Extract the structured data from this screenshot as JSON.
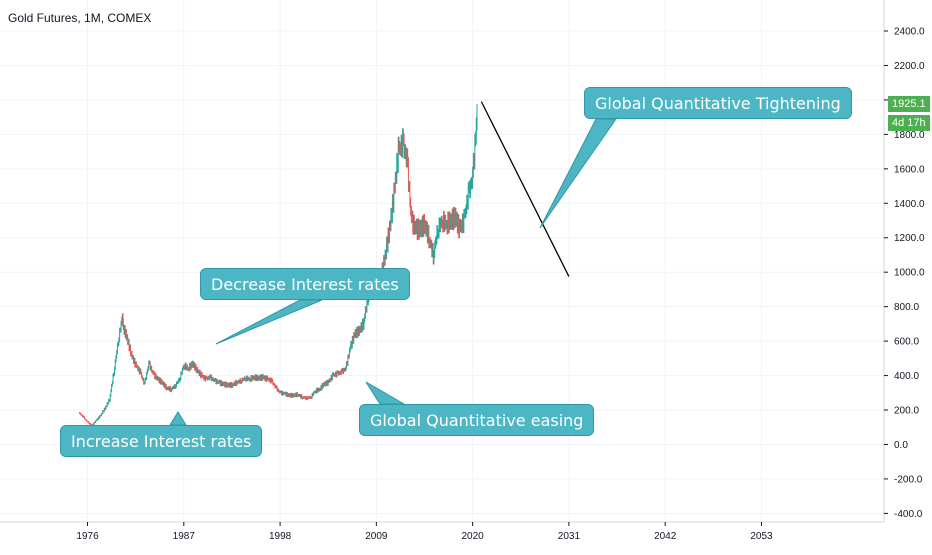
{
  "header": {
    "title": "Gold Futures, 1M, COMEX"
  },
  "price_axis": {
    "labels": [
      "2400.0",
      "2200.0",
      "2000.0",
      "1800.0",
      "1600.0",
      "1400.0",
      "1200.0",
      "1000.0",
      "800.0",
      "600.0",
      "400.0",
      "200.0",
      "0.0",
      "-200.0",
      "-400.0"
    ],
    "last_price": "1925.1",
    "countdown": "4d 17h",
    "tag_color": "#4caf50"
  },
  "time_axis": {
    "labels": [
      "1976",
      "1987",
      "1998",
      "2009",
      "2020",
      "2031",
      "2042",
      "2053"
    ]
  },
  "annotations": {
    "increase": "Increase Interest rates",
    "decrease": "Decrease Interest rates",
    "qe": "Global Quantitative easing",
    "qt": "Global Quantitative Tightening"
  },
  "colors": {
    "callout": "#4db6c4",
    "up": "#26a69a",
    "down": "#ef5350",
    "projection": "#000000"
  },
  "chart_data": {
    "type": "line",
    "title": "Gold Futures, 1M, COMEX",
    "xlabel": "",
    "ylabel": "",
    "xlim": [
      1966,
      2067
    ],
    "ylim": [
      -450,
      2580
    ],
    "x_ticks": [
      1976,
      1987,
      1998,
      2009,
      2020,
      2031,
      2042,
      2053
    ],
    "y_ticks": [
      -400,
      -200,
      0,
      200,
      400,
      600,
      800,
      1000,
      1200,
      1400,
      1600,
      1800,
      2000,
      2200,
      2400
    ],
    "grid": true,
    "series": [
      {
        "x": [
          1975.0,
          1975.5,
          1976.0,
          1976.5,
          1977.0,
          1977.5,
          1978.0,
          1978.5,
          1979.0,
          1979.5,
          1980.0,
          1980.1,
          1980.5,
          1981.0,
          1981.5,
          1982.0,
          1982.5,
          1983.0,
          1983.5,
          1984.0,
          1984.5,
          1985.0,
          1985.5,
          1986.0,
          1986.5,
          1987.0,
          1987.5,
          1988.0,
          1988.5,
          1989.0,
          1989.5,
          1990.0,
          1990.5,
          1991.0,
          1991.5,
          1992.0,
          1992.5,
          1993.0,
          1993.5,
          1994.0,
          1994.5,
          1995.0,
          1995.5,
          1996.0,
          1996.5,
          1997.0,
          1997.5,
          1998.0,
          1998.5,
          1999.0,
          1999.5,
          2000.0,
          2000.5,
          2001.0,
          2001.5,
          2002.0,
          2002.5,
          2003.0,
          2003.5,
          2004.0,
          2004.5,
          2005.0,
          2005.5,
          2006.0,
          2006.5,
          2007.0,
          2007.5,
          2008.0,
          2008.5,
          2009.0,
          2009.5,
          2010.0,
          2010.5,
          2011.0,
          2011.5,
          2012.0,
          2012.5,
          2013.0,
          2013.5,
          2014.0,
          2014.5,
          2015.0,
          2015.5,
          2016.0,
          2016.5,
          2017.0,
          2017.5,
          2018.0,
          2018.5,
          2019.0,
          2019.5,
          2020.0,
          2020.5
        ],
        "values": [
          185,
          160,
          130,
          110,
          140,
          170,
          210,
          260,
          420,
          600,
          750,
          680,
          620,
          520,
          460,
          420,
          350,
          470,
          410,
          380,
          360,
          330,
          320,
          340,
          380,
          460,
          440,
          470,
          430,
          400,
          380,
          390,
          370,
          360,
          350,
          345,
          345,
          360,
          370,
          385,
          380,
          390,
          385,
          390,
          380,
          370,
          330,
          300,
          295,
          285,
          285,
          290,
          275,
          270,
          275,
          310,
          320,
          350,
          360,
          400,
          410,
          420,
          440,
          560,
          640,
          660,
          700,
          850,
          900,
          900,
          960,
          1100,
          1250,
          1450,
          1700,
          1750,
          1650,
          1300,
          1250,
          1250,
          1280,
          1200,
          1100,
          1250,
          1300,
          1280,
          1300,
          1320,
          1250,
          1300,
          1450,
          1550,
          1920
        ]
      },
      {
        "x": [
          2021,
          2031
        ],
        "values": [
          1990,
          975
        ]
      }
    ],
    "annotations": [
      "Increase Interest rates",
      "Decrease Interest rates",
      "Global Quantitative easing",
      "Global Quantitative Tightening"
    ]
  }
}
